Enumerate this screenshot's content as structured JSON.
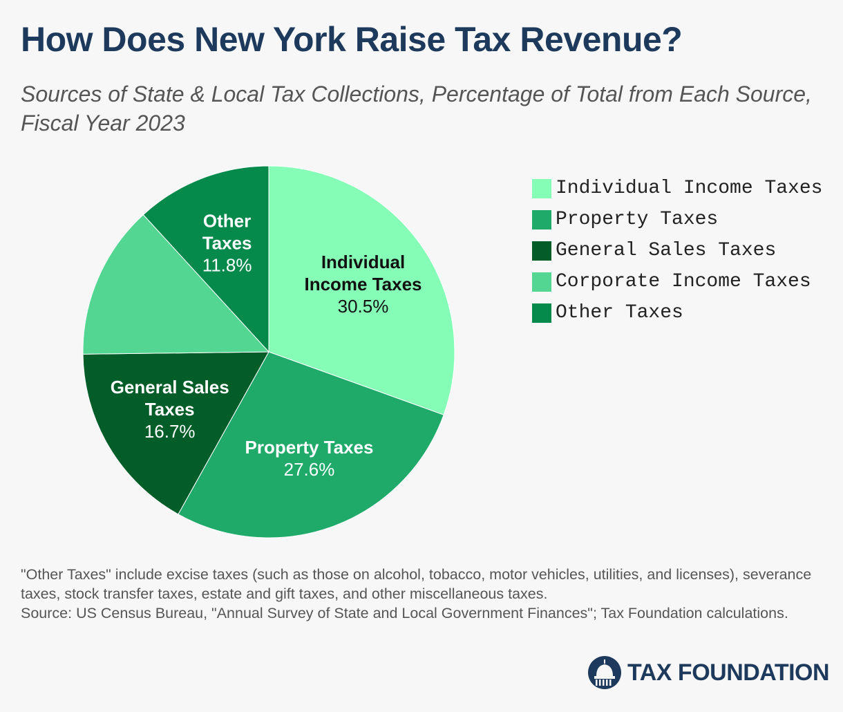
{
  "header": {
    "title": "How Does New York Raise Tax Revenue?",
    "subtitle": "Sources of State & Local Tax Collections, Percentage of Total from Each Source, Fiscal Year 2023"
  },
  "chart_data": {
    "type": "pie",
    "title": "How Does New York Raise Tax Revenue?",
    "subtitle": "Sources of State & Local Tax Collections, Percentage of Total from Each Source, Fiscal Year 2023",
    "unit": "%",
    "legend_position": "right",
    "slices": [
      {
        "name": "Individual Income Taxes",
        "value": 30.5,
        "color": "#86fdb6",
        "label_lines": [
          "Individual",
          "Income Taxes"
        ],
        "value_label": "30.5%",
        "label_color": "#111111",
        "show_label": true
      },
      {
        "name": "Property Taxes",
        "value": 27.6,
        "color": "#20aa6a",
        "label_lines": [
          "Property Taxes"
        ],
        "value_label": "27.6%",
        "label_color": "#ffffff",
        "show_label": true
      },
      {
        "name": "General Sales Taxes",
        "value": 16.7,
        "color": "#035d28",
        "label_lines": [
          "General Sales",
          "Taxes"
        ],
        "value_label": "16.7%",
        "label_color": "#ffffff",
        "show_label": true
      },
      {
        "name": "Corporate Income Taxes",
        "value": 13.4,
        "color": "#53d692",
        "label_lines": [],
        "value_label": "",
        "label_color": "#ffffff",
        "show_label": false
      },
      {
        "name": "Other Taxes",
        "value": 11.8,
        "color": "#068a4b",
        "label_lines": [
          "Other",
          "Taxes"
        ],
        "value_label": "11.8%",
        "label_color": "#ffffff",
        "show_label": true
      }
    ]
  },
  "footnote": {
    "note": "\"Other Taxes\" include excise taxes (such as those on alcohol, tobacco, motor vehicles, utilities, and licenses), severance taxes, stock transfer taxes, estate and gift taxes, and other miscellaneous taxes.",
    "source": "Source: US Census Bureau, \"Annual Survey of State and Local Government Finances\"; Tax Foundation calculations."
  },
  "brand": {
    "name": "TAX FOUNDATION",
    "logo_icon": "capitol-dome-icon",
    "color": "#1d3a5c"
  }
}
